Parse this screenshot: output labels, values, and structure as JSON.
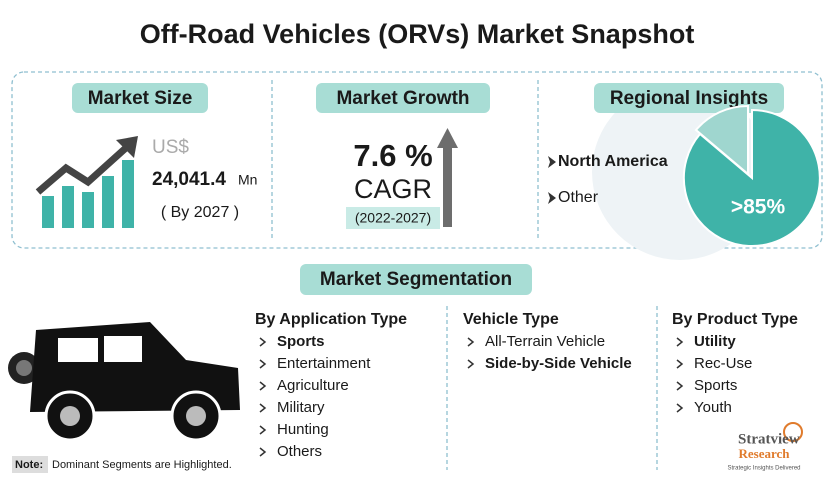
{
  "title": "Off-Road Vehicles (ORVs) Market Snapshot",
  "market_size": {
    "heading": "Market Size",
    "currency": "US$",
    "value": "24,041.4",
    "unit": "Mn",
    "year": "( By 2027 )"
  },
  "market_growth": {
    "heading": "Market Growth",
    "value": "7.6 %",
    "label": "CAGR",
    "period": "(2022-2027)"
  },
  "regional_insights": {
    "heading": "Regional Insights",
    "regions": [
      {
        "text": "North America",
        "highlighted": true
      },
      {
        "text": "Other",
        "highlighted": false
      }
    ],
    "share": ">85%"
  },
  "segmentation": {
    "heading": "Market Segmentation",
    "columns": [
      {
        "heading": "By Application Type",
        "items": [
          {
            "text": "Sports",
            "highlighted": true
          },
          {
            "text": "Entertainment",
            "highlighted": false
          },
          {
            "text": "Agriculture",
            "highlighted": false
          },
          {
            "text": "Military",
            "highlighted": false
          },
          {
            "text": "Hunting",
            "highlighted": false
          },
          {
            "text": "Others",
            "highlighted": false
          }
        ]
      },
      {
        "heading": "Vehicle Type",
        "items": [
          {
            "text": "All-Terrain Vehicle",
            "highlighted": false
          },
          {
            "text": "Side-by-Side Vehicle",
            "highlighted": true
          }
        ]
      },
      {
        "heading": "By Product Type",
        "items": [
          {
            "text": "Utility",
            "highlighted": true
          },
          {
            "text": "Rec-Use",
            "highlighted": false
          },
          {
            "text": "Sports",
            "highlighted": false
          },
          {
            "text": "Youth",
            "highlighted": false
          }
        ]
      }
    ]
  },
  "note": {
    "label": "Note:",
    "text": "Dominant Segments are Highlighted."
  },
  "logo": {
    "name": "Stratview",
    "sub": "Research",
    "tagline": "Strategic Insights Delivered"
  }
}
